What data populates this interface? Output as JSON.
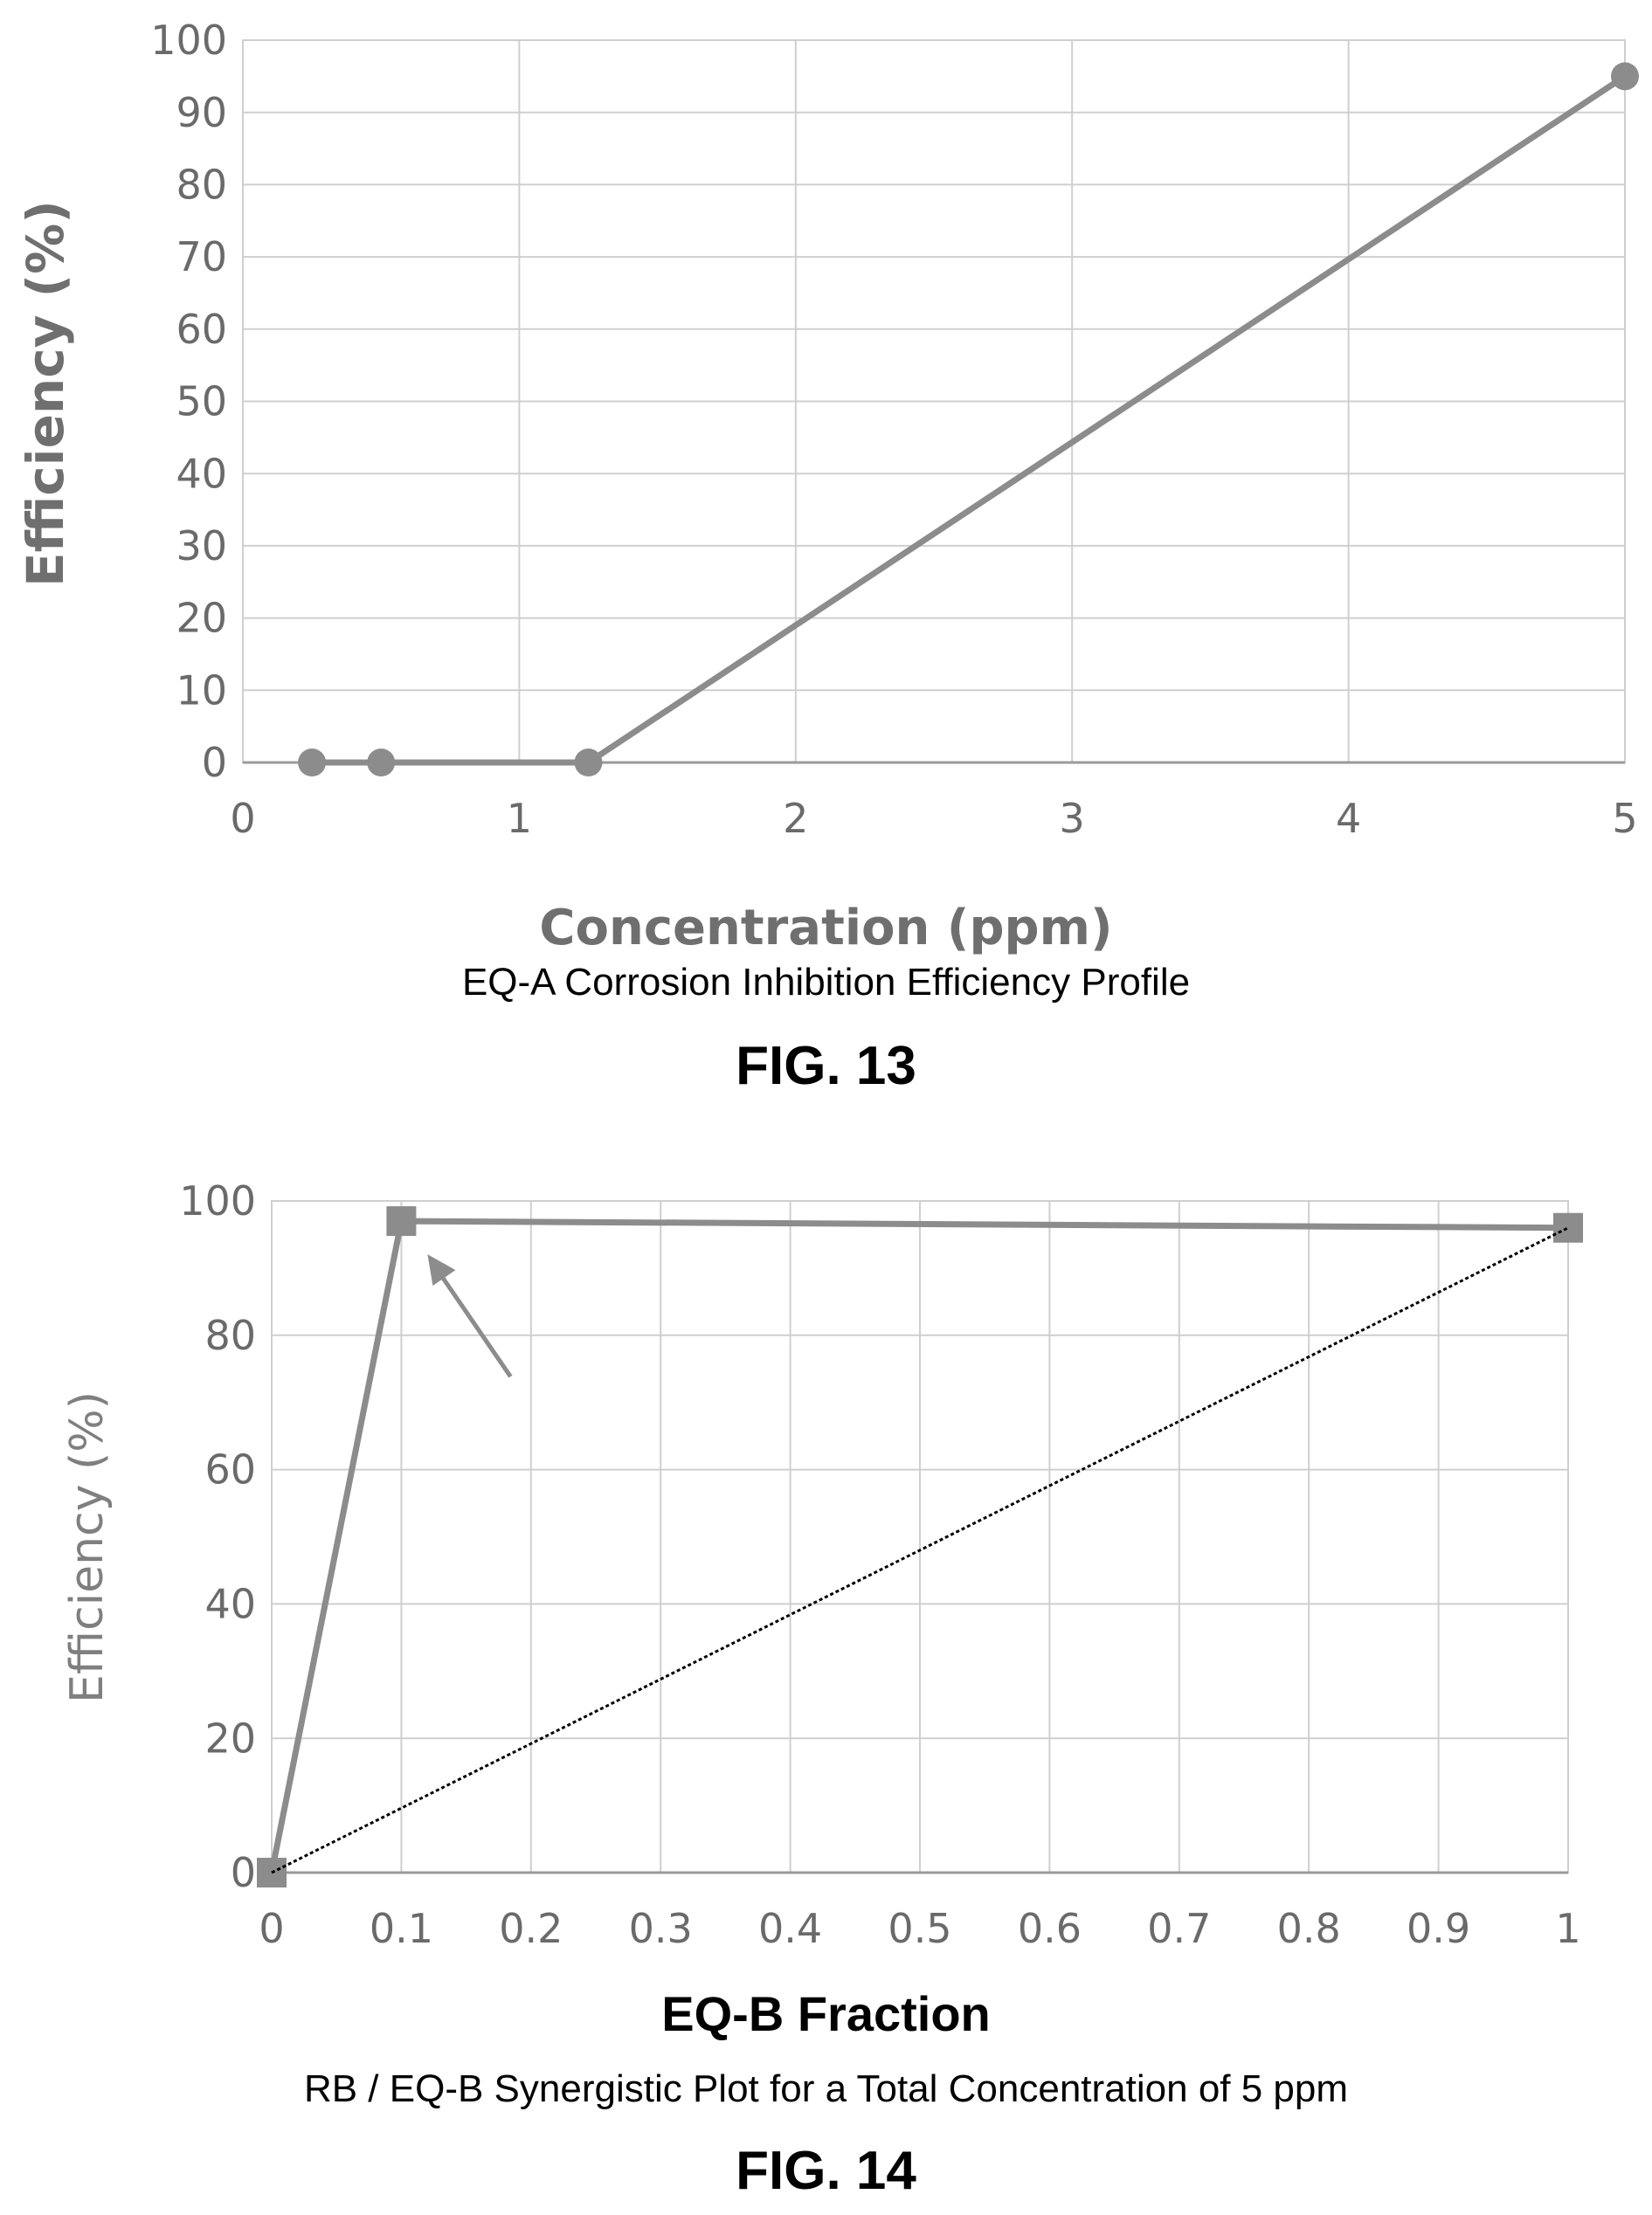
{
  "chart_data": [
    {
      "type": "line",
      "xlabel": "Concentration (ppm)",
      "ylabel": "Efficiency (%)",
      "subtitle": "EQ-A Corrosion Inhibition Efficiency Profile",
      "figure_label": "FIG. 13",
      "xlim": [
        0,
        5
      ],
      "ylim": [
        0,
        100
      ],
      "x_ticks": [
        0,
        1,
        2,
        3,
        4,
        5
      ],
      "y_ticks": [
        0,
        10,
        20,
        30,
        40,
        50,
        60,
        70,
        80,
        90,
        100
      ],
      "grid": true,
      "series": [
        {
          "marker": "circle",
          "color": "#8c8c8c",
          "x": [
            0.25,
            0.5,
            1.25,
            5
          ],
          "y": [
            0,
            0,
            0,
            95
          ]
        }
      ]
    },
    {
      "type": "line",
      "xlabel": "EQ-B Fraction",
      "ylabel": "Efficiency (%)",
      "subtitle": "RB / EQ-B Synergistic Plot for a Total Concentration of 5 ppm",
      "figure_label": "FIG. 14",
      "xlim": [
        0,
        1
      ],
      "ylim": [
        0,
        100
      ],
      "x_ticks": [
        0,
        0.1,
        0.2,
        0.3,
        0.4,
        0.5,
        0.6,
        0.7,
        0.8,
        0.9,
        1
      ],
      "y_ticks": [
        0,
        20,
        40,
        60,
        80,
        100
      ],
      "grid": true,
      "series": [
        {
          "marker": "square",
          "color": "#8c8c8c",
          "x": [
            0,
            0.1,
            1
          ],
          "y": [
            0,
            97,
            96
          ]
        },
        {
          "marker": "none",
          "color": "#000000",
          "style": "dotted",
          "x": [
            0,
            1
          ],
          "y": [
            0,
            96
          ]
        }
      ],
      "annotation": {
        "type": "arrow",
        "points_to": {
          "x": 0.1,
          "y": 97
        }
      }
    }
  ]
}
